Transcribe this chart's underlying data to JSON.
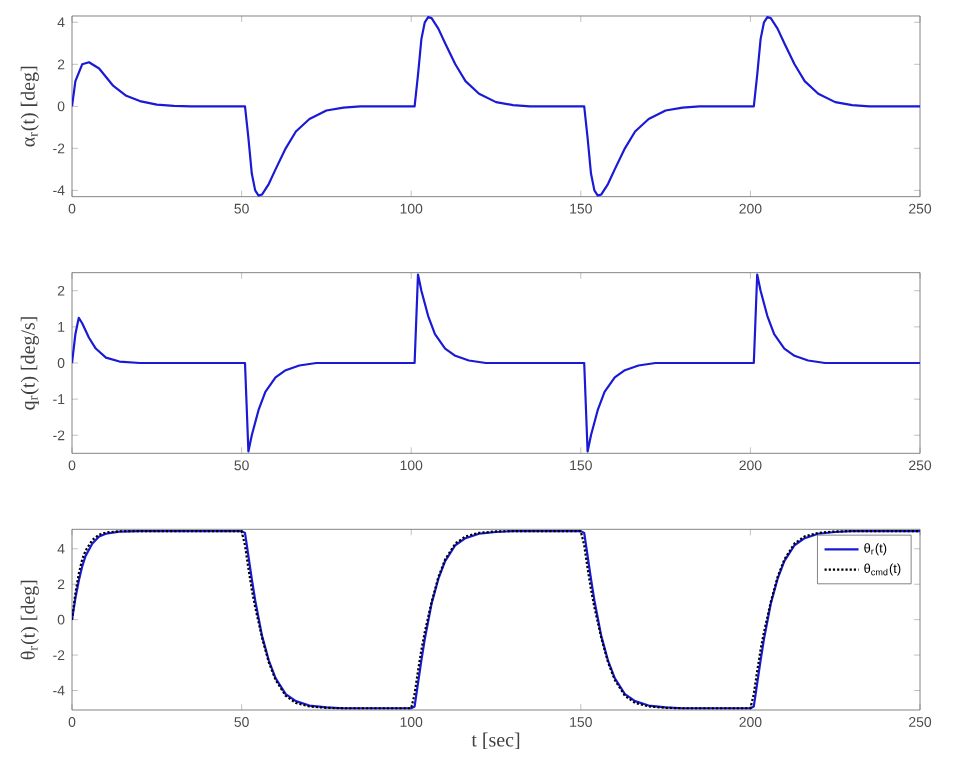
{
  "chart_data": [
    {
      "type": "line",
      "ylabel": "α$_{r}$(t)  [deg]",
      "xlim": [
        0,
        250
      ],
      "ylim": [
        -4.3,
        4.3
      ],
      "xticks": [
        0,
        50,
        100,
        150,
        200,
        250
      ],
      "yticks": [
        -4,
        -2,
        0,
        2,
        4
      ],
      "series": [
        {
          "color": "#1a1ad6",
          "line_style": "solid",
          "x": [
            0,
            1,
            3,
            5,
            8,
            12,
            16,
            20,
            25,
            30,
            35,
            51,
            52,
            53,
            54,
            55,
            56,
            58,
            60,
            63,
            66,
            70,
            75,
            80,
            85,
            101,
            102,
            103,
            104,
            105,
            106,
            108,
            110,
            113,
            116,
            120,
            125,
            130,
            135,
            151,
            152,
            153,
            154,
            155,
            156,
            158,
            160,
            163,
            166,
            170,
            175,
            180,
            185,
            201,
            202,
            203,
            204,
            205,
            206,
            208,
            210,
            213,
            216,
            220,
            225,
            230,
            235,
            250
          ],
          "values": [
            0,
            1.2,
            2,
            2.1,
            1.8,
            1,
            0.5,
            0.25,
            0.08,
            0.02,
            0,
            0,
            -1.5,
            -3.2,
            -4,
            -4.25,
            -4.2,
            -3.7,
            -3,
            -2,
            -1.2,
            -0.6,
            -0.2,
            -0.06,
            0,
            0,
            1.5,
            3.2,
            4,
            4.25,
            4.2,
            3.7,
            3,
            2,
            1.2,
            0.6,
            0.2,
            0.06,
            0,
            0,
            -1.5,
            -3.2,
            -4,
            -4.25,
            -4.2,
            -3.7,
            -3,
            -2,
            -1.2,
            -0.6,
            -0.2,
            -0.06,
            0,
            0,
            1.5,
            3.2,
            4,
            4.25,
            4.2,
            3.7,
            3,
            2,
            1.2,
            0.6,
            0.2,
            0.06,
            0,
            0
          ]
        }
      ]
    },
    {
      "type": "line",
      "ylabel": "q$_{r}$(t)  [deg/s]",
      "xlim": [
        0,
        250
      ],
      "ylim": [
        -2.5,
        2.5
      ],
      "xticks": [
        0,
        50,
        100,
        150,
        200,
        250
      ],
      "yticks": [
        -2,
        -1,
        0,
        1,
        2
      ],
      "series": [
        {
          "color": "#1a1ad6",
          "line_style": "solid",
          "x": [
            0,
            1,
            2,
            3,
            5,
            7,
            10,
            14,
            20,
            51,
            52,
            53,
            55,
            57,
            60,
            63,
            67,
            72,
            101,
            102,
            103,
            105,
            107,
            110,
            113,
            117,
            122,
            151,
            152,
            153,
            155,
            157,
            160,
            163,
            167,
            172,
            201,
            202,
            203,
            205,
            207,
            210,
            213,
            217,
            222,
            250
          ],
          "values": [
            0,
            0.8,
            1.25,
            1.1,
            0.7,
            0.4,
            0.15,
            0.04,
            0,
            0,
            -2.45,
            -2,
            -1.3,
            -0.8,
            -0.4,
            -0.2,
            -0.07,
            0,
            0,
            2.45,
            2,
            1.3,
            0.8,
            0.4,
            0.2,
            0.07,
            0,
            0,
            -2.45,
            -2,
            -1.3,
            -0.8,
            -0.4,
            -0.2,
            -0.07,
            0,
            0,
            2.45,
            2,
            1.3,
            0.8,
            0.4,
            0.2,
            0.07,
            0,
            0
          ]
        }
      ]
    },
    {
      "type": "line",
      "ylabel": "θ$_{r}$(t)  [deg]",
      "xlabel": "t  [sec]",
      "xlim": [
        0,
        250
      ],
      "ylim": [
        -5.1,
        5.1
      ],
      "xticks": [
        0,
        50,
        100,
        150,
        200,
        250
      ],
      "yticks": [
        -4,
        -2,
        0,
        2,
        4
      ],
      "legend": "top right",
      "series": [
        {
          "name": "θ$_{r}$(t)",
          "color": "#1a1ad6",
          "line_style": "solid",
          "x": [
            0,
            1,
            2,
            3,
            4,
            6,
            8,
            10,
            14,
            20,
            50,
            51,
            52,
            53,
            54,
            56,
            58,
            60,
            63,
            66,
            70,
            75,
            80,
            100,
            101,
            102,
            103,
            104,
            106,
            108,
            110,
            113,
            116,
            120,
            125,
            130,
            150,
            151,
            152,
            153,
            154,
            156,
            158,
            160,
            163,
            166,
            170,
            175,
            180,
            200,
            201,
            202,
            203,
            204,
            206,
            208,
            210,
            213,
            216,
            220,
            225,
            230,
            250
          ],
          "values": [
            0,
            1.2,
            2.2,
            3,
            3.6,
            4.3,
            4.7,
            4.85,
            4.97,
            5,
            5,
            4.9,
            3.6,
            2.3,
            1.1,
            -0.9,
            -2.3,
            -3.3,
            -4.2,
            -4.6,
            -4.85,
            -4.95,
            -5,
            -5,
            -4.9,
            -3.6,
            -2.3,
            -1.1,
            0.9,
            2.3,
            3.3,
            4.2,
            4.6,
            4.85,
            4.95,
            5,
            5,
            4.9,
            3.6,
            2.3,
            1.1,
            -0.9,
            -2.3,
            -3.3,
            -4.2,
            -4.6,
            -4.85,
            -4.95,
            -5,
            -5,
            -4.9,
            -3.6,
            -2.3,
            -1.1,
            0.9,
            2.3,
            3.3,
            4.2,
            4.6,
            4.85,
            4.95,
            5,
            5
          ]
        },
        {
          "name": "θ$_{cmd}$(t)",
          "color": "#000000",
          "line_style": "dotted",
          "x": [
            0,
            1,
            2,
            3,
            4,
            6,
            8,
            10,
            14,
            20,
            50,
            51,
            52,
            53,
            54,
            56,
            58,
            60,
            63,
            66,
            70,
            75,
            80,
            100,
            101,
            102,
            103,
            104,
            106,
            108,
            110,
            113,
            116,
            120,
            125,
            130,
            150,
            151,
            152,
            153,
            154,
            156,
            158,
            160,
            163,
            166,
            170,
            175,
            180,
            200,
            201,
            202,
            203,
            204,
            206,
            208,
            210,
            213,
            216,
            220,
            225,
            230,
            250
          ],
          "values": [
            0,
            1.5,
            2.6,
            3.4,
            3.9,
            4.5,
            4.8,
            4.92,
            4.99,
            5,
            5,
            4.2,
            2.9,
            1.7,
            0.7,
            -1,
            -2.4,
            -3.4,
            -4.3,
            -4.7,
            -4.9,
            -4.98,
            -5,
            -5,
            -4.2,
            -2.9,
            -1.7,
            -0.7,
            1,
            2.4,
            3.4,
            4.3,
            4.7,
            4.9,
            4.98,
            5,
            5,
            4.2,
            2.9,
            1.7,
            0.7,
            -1,
            -2.4,
            -3.4,
            -4.3,
            -4.7,
            -4.9,
            -4.98,
            -5,
            -5,
            -4.2,
            -2.9,
            -1.7,
            -0.7,
            1,
            2.4,
            3.4,
            4.3,
            4.7,
            4.9,
            4.98,
            5,
            5
          ]
        }
      ]
    }
  ]
}
